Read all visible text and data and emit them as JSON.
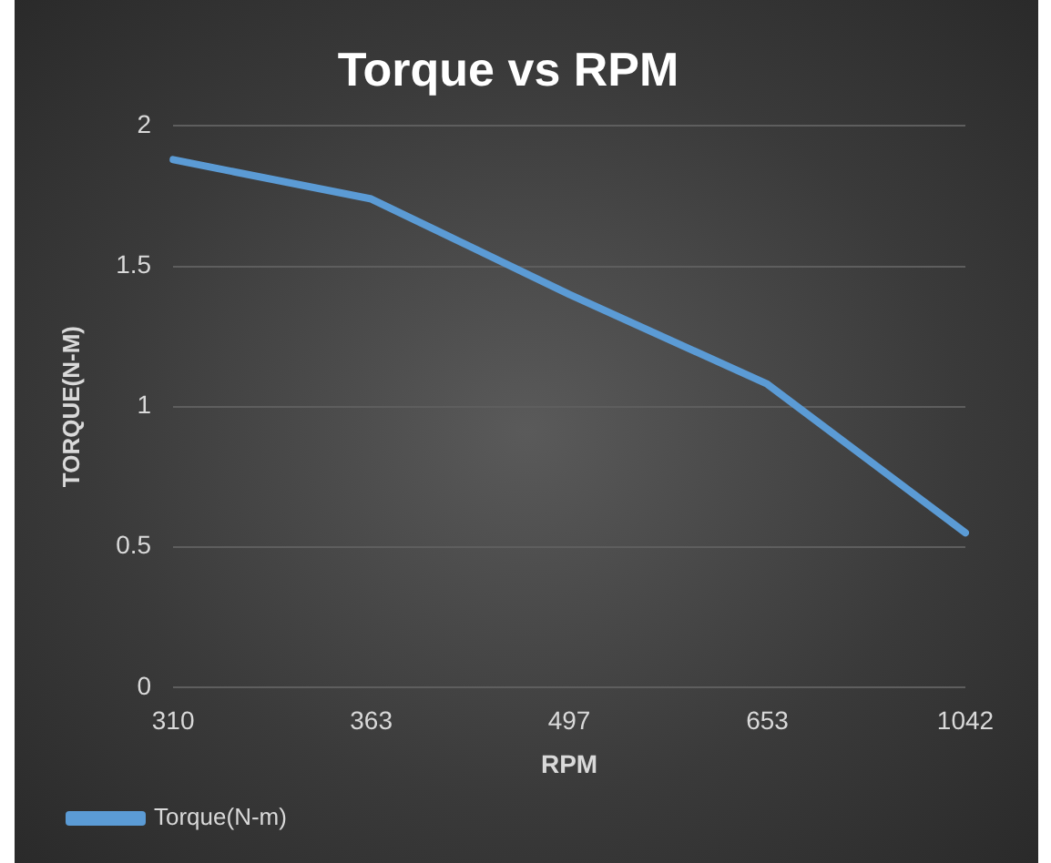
{
  "chart_data": {
    "type": "line",
    "title": "Torque vs RPM",
    "xlabel": "RPM",
    "ylabel": "TORQUE(N-M)",
    "categories": [
      "310",
      "363",
      "497",
      "653",
      "1042"
    ],
    "series": [
      {
        "name": "Torque(N-m)",
        "color": "#5b9bd5",
        "values": [
          1.88,
          1.74,
          1.4,
          1.08,
          0.55
        ]
      }
    ],
    "ylim": [
      0,
      2
    ],
    "yticks": [
      0,
      0.5,
      1,
      1.5,
      2
    ],
    "grid": "y",
    "legend": "bottom left",
    "marker": "none",
    "line_style": "solid"
  }
}
